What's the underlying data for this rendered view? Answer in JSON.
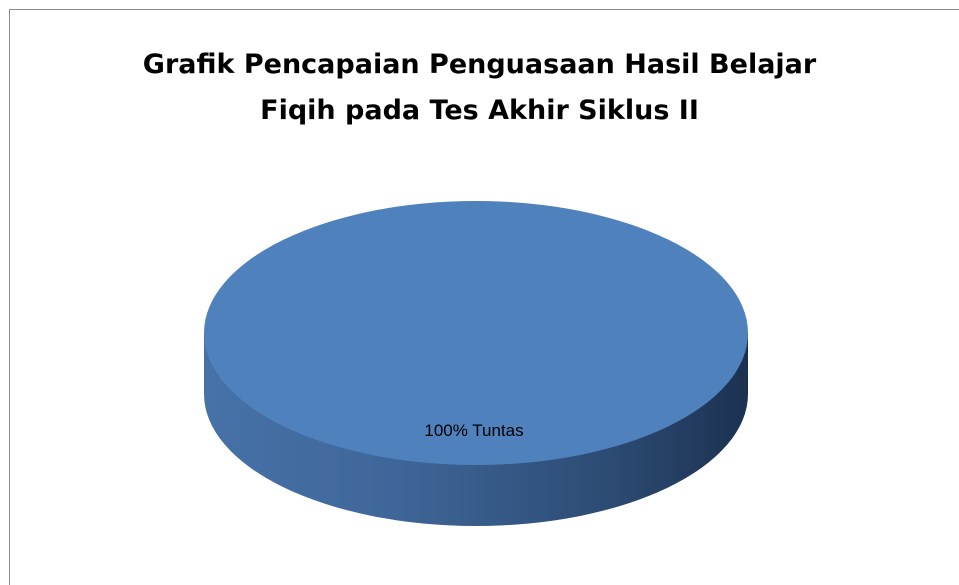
{
  "chart_data": {
    "type": "pie",
    "title_lines": [
      "Grafik Pencapaian Penguasaan Hasil Belajar",
      "Fiqih pada Tes Akhir Siklus II"
    ],
    "slices": [
      {
        "label": "Tuntas",
        "value": 100,
        "data_label": "100% Tuntas",
        "color": "#4f81bd"
      }
    ],
    "style": "3d",
    "legend": "none"
  }
}
